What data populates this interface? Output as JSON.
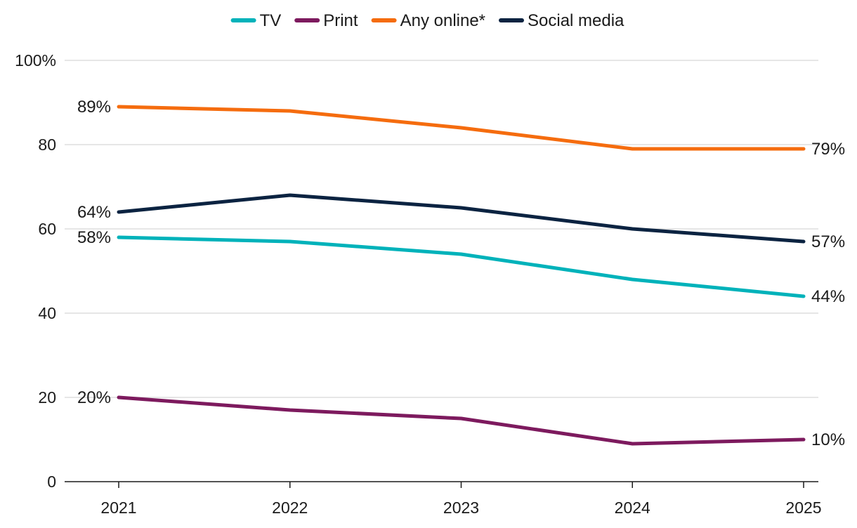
{
  "chart_data": {
    "type": "line",
    "title": "",
    "xlabel": "",
    "ylabel": "",
    "x": [
      "2021",
      "2022",
      "2023",
      "2024",
      "2025"
    ],
    "ylim": [
      0,
      100
    ],
    "yticks": [
      0,
      20,
      40,
      60,
      80,
      100
    ],
    "ytick_labels": [
      "0",
      "20",
      "40",
      "60",
      "80",
      "100%"
    ],
    "grid": true,
    "legend_position": "top-center",
    "series": [
      {
        "name": "TV",
        "color": "#00B2BA",
        "values": [
          58,
          57,
          54,
          48,
          44
        ],
        "start_label": "58%",
        "end_label": "44%"
      },
      {
        "name": "Print",
        "color": "#7D1A5E",
        "values": [
          20,
          17,
          15,
          9,
          10
        ],
        "start_label": "20%",
        "end_label": "10%"
      },
      {
        "name": "Any online*",
        "color": "#F56C0E",
        "values": [
          89,
          88,
          84,
          79,
          79
        ],
        "start_label": "89%",
        "end_label": "79%"
      },
      {
        "name": "Social media",
        "color": "#0B2341",
        "values": [
          64,
          68,
          65,
          60,
          57
        ],
        "start_label": "64%",
        "end_label": "57%"
      }
    ]
  }
}
